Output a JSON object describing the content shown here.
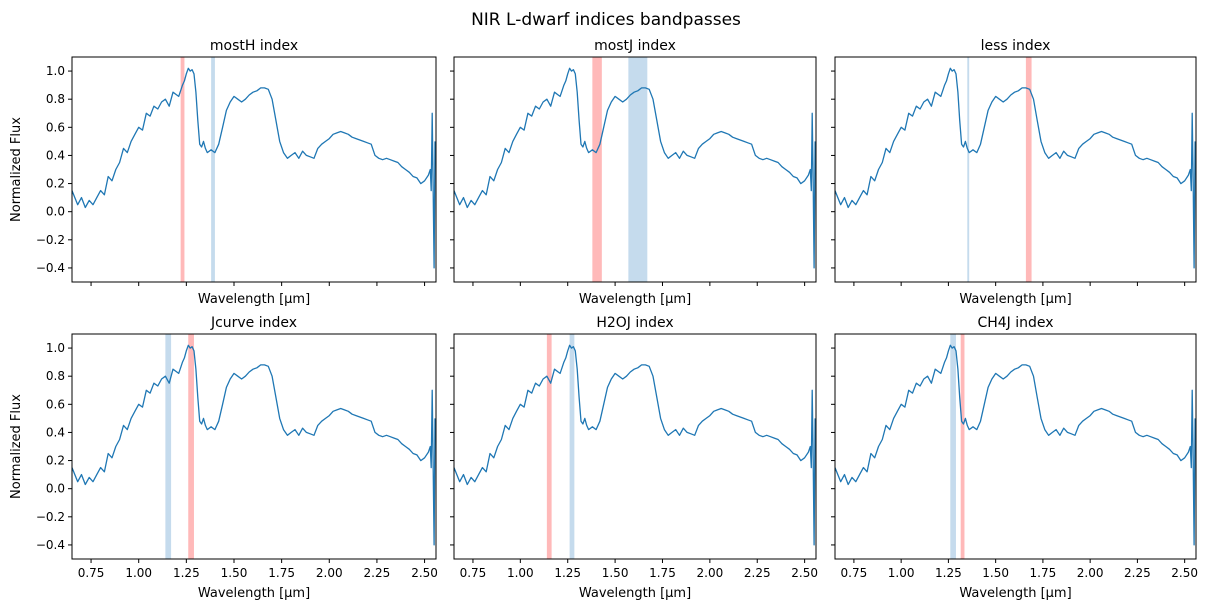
{
  "figure": {
    "title": "NIR L-dwarf indices bandpasses"
  },
  "colors": {
    "spectrum": "#1f77b4",
    "numerator_band": "#ff7f7f",
    "denominator_band": "#a6c8e4"
  },
  "chart_data": [
    {
      "type": "line",
      "title": "mostH index",
      "xlabel": "Wavelength [µm]",
      "ylabel": "Normalized Flux",
      "xlim": [
        0.65,
        2.56
      ],
      "ylim": [
        -0.5,
        1.1
      ],
      "xticks": [
        0.75,
        1.0,
        1.25,
        1.5,
        1.75,
        2.0,
        2.25,
        2.5
      ],
      "yticks": [
        -0.4,
        -0.2,
        0.0,
        0.2,
        0.4,
        0.6,
        0.8,
        1.0
      ],
      "show_xticklabels": false,
      "show_yticklabels": true,
      "bands": [
        {
          "color": "red",
          "x": [
            1.22,
            1.24
          ]
        },
        {
          "color": "blue",
          "x": [
            1.38,
            1.4
          ]
        }
      ]
    },
    {
      "type": "line",
      "title": "mostJ index",
      "xlabel": "Wavelength [µm]",
      "ylabel": "",
      "xlim": [
        0.65,
        2.56
      ],
      "ylim": [
        -0.5,
        1.1
      ],
      "xticks": [
        0.75,
        1.0,
        1.25,
        1.5,
        1.75,
        2.0,
        2.25,
        2.5
      ],
      "yticks": [
        -0.4,
        -0.2,
        0.0,
        0.2,
        0.4,
        0.6,
        0.8,
        1.0
      ],
      "show_xticklabels": false,
      "show_yticklabels": false,
      "bands": [
        {
          "color": "red",
          "x": [
            1.38,
            1.43
          ]
        },
        {
          "color": "blue",
          "x": [
            1.57,
            1.67
          ]
        }
      ]
    },
    {
      "type": "line",
      "title": "less index",
      "xlabel": "Wavelength [µm]",
      "ylabel": "",
      "xlim": [
        0.65,
        2.56
      ],
      "ylim": [
        -0.5,
        1.1
      ],
      "xticks": [
        0.75,
        1.0,
        1.25,
        1.5,
        1.75,
        2.0,
        2.25,
        2.5
      ],
      "yticks": [
        -0.4,
        -0.2,
        0.0,
        0.2,
        0.4,
        0.6,
        0.8,
        1.0
      ],
      "show_xticklabels": false,
      "show_yticklabels": false,
      "bands": [
        {
          "color": "blue",
          "x": [
            1.35,
            1.36
          ]
        },
        {
          "color": "red",
          "x": [
            1.66,
            1.69
          ]
        }
      ]
    },
    {
      "type": "line",
      "title": "Jcurve index",
      "xlabel": "Wavelength [µm]",
      "ylabel": "Normalized Flux",
      "xlim": [
        0.65,
        2.56
      ],
      "ylim": [
        -0.5,
        1.1
      ],
      "xticks": [
        0.75,
        1.0,
        1.25,
        1.5,
        1.75,
        2.0,
        2.25,
        2.5
      ],
      "yticks": [
        -0.4,
        -0.2,
        0.0,
        0.2,
        0.4,
        0.6,
        0.8,
        1.0
      ],
      "show_xticklabels": true,
      "show_yticklabels": true,
      "bands": [
        {
          "color": "blue",
          "x": [
            1.14,
            1.17
          ]
        },
        {
          "color": "red",
          "x": [
            1.26,
            1.29
          ]
        }
      ]
    },
    {
      "type": "line",
      "title": "H2OJ index",
      "xlabel": "Wavelength [µm]",
      "ylabel": "",
      "xlim": [
        0.65,
        2.56
      ],
      "ylim": [
        -0.5,
        1.1
      ],
      "xticks": [
        0.75,
        1.0,
        1.25,
        1.5,
        1.75,
        2.0,
        2.25,
        2.5
      ],
      "yticks": [
        -0.4,
        -0.2,
        0.0,
        0.2,
        0.4,
        0.6,
        0.8,
        1.0
      ],
      "show_xticklabels": true,
      "show_yticklabels": false,
      "bands": [
        {
          "color": "red",
          "x": [
            1.14,
            1.165
          ]
        },
        {
          "color": "blue",
          "x": [
            1.26,
            1.285
          ]
        }
      ]
    },
    {
      "type": "line",
      "title": "CH4J index",
      "xlabel": "Wavelength [µm]",
      "ylabel": "",
      "xlim": [
        0.65,
        2.56
      ],
      "ylim": [
        -0.5,
        1.1
      ],
      "xticks": [
        0.75,
        1.0,
        1.25,
        1.5,
        1.75,
        2.0,
        2.25,
        2.5
      ],
      "yticks": [
        -0.4,
        -0.2,
        0.0,
        0.2,
        0.4,
        0.6,
        0.8,
        1.0
      ],
      "show_xticklabels": true,
      "show_yticklabels": false,
      "bands": [
        {
          "color": "blue",
          "x": [
            1.26,
            1.29
          ]
        },
        {
          "color": "red",
          "x": [
            1.315,
            1.335
          ]
        }
      ]
    }
  ],
  "spectrum": {
    "x": [
      0.65,
      0.68,
      0.7,
      0.72,
      0.74,
      0.76,
      0.78,
      0.8,
      0.82,
      0.84,
      0.86,
      0.88,
      0.9,
      0.92,
      0.94,
      0.96,
      0.98,
      1.0,
      1.02,
      1.04,
      1.06,
      1.08,
      1.1,
      1.12,
      1.14,
      1.16,
      1.18,
      1.2,
      1.21,
      1.22,
      1.23,
      1.24,
      1.25,
      1.26,
      1.27,
      1.28,
      1.29,
      1.3,
      1.31,
      1.32,
      1.33,
      1.34,
      1.35,
      1.36,
      1.38,
      1.4,
      1.42,
      1.44,
      1.46,
      1.48,
      1.5,
      1.52,
      1.54,
      1.56,
      1.58,
      1.6,
      1.62,
      1.64,
      1.66,
      1.68,
      1.7,
      1.72,
      1.74,
      1.76,
      1.78,
      1.8,
      1.82,
      1.84,
      1.86,
      1.88,
      1.9,
      1.92,
      1.94,
      1.96,
      1.98,
      2.0,
      2.02,
      2.04,
      2.06,
      2.08,
      2.1,
      2.12,
      2.14,
      2.16,
      2.18,
      2.2,
      2.22,
      2.24,
      2.26,
      2.28,
      2.3,
      2.32,
      2.34,
      2.36,
      2.38,
      2.4,
      2.42,
      2.44,
      2.46,
      2.48,
      2.5,
      2.52,
      2.53,
      2.535,
      2.54,
      2.545,
      2.55,
      2.555
    ],
    "y": [
      0.15,
      0.05,
      0.1,
      0.03,
      0.08,
      0.05,
      0.1,
      0.15,
      0.12,
      0.25,
      0.22,
      0.3,
      0.35,
      0.45,
      0.42,
      0.5,
      0.55,
      0.6,
      0.58,
      0.7,
      0.68,
      0.75,
      0.73,
      0.78,
      0.8,
      0.75,
      0.85,
      0.83,
      0.82,
      0.86,
      0.9,
      0.93,
      0.98,
      1.02,
      1.0,
      1.01,
      0.98,
      0.85,
      0.65,
      0.48,
      0.46,
      0.5,
      0.45,
      0.42,
      0.44,
      0.42,
      0.48,
      0.6,
      0.72,
      0.78,
      0.82,
      0.8,
      0.78,
      0.8,
      0.83,
      0.85,
      0.86,
      0.88,
      0.88,
      0.87,
      0.8,
      0.65,
      0.5,
      0.42,
      0.38,
      0.4,
      0.42,
      0.38,
      0.43,
      0.4,
      0.39,
      0.38,
      0.45,
      0.48,
      0.5,
      0.52,
      0.55,
      0.56,
      0.57,
      0.56,
      0.55,
      0.53,
      0.52,
      0.51,
      0.5,
      0.49,
      0.48,
      0.4,
      0.38,
      0.37,
      0.38,
      0.37,
      0.36,
      0.35,
      0.32,
      0.3,
      0.28,
      0.25,
      0.24,
      0.2,
      0.22,
      0.26,
      0.3,
      0.15,
      0.7,
      0.2,
      -0.4,
      0.5
    ]
  }
}
